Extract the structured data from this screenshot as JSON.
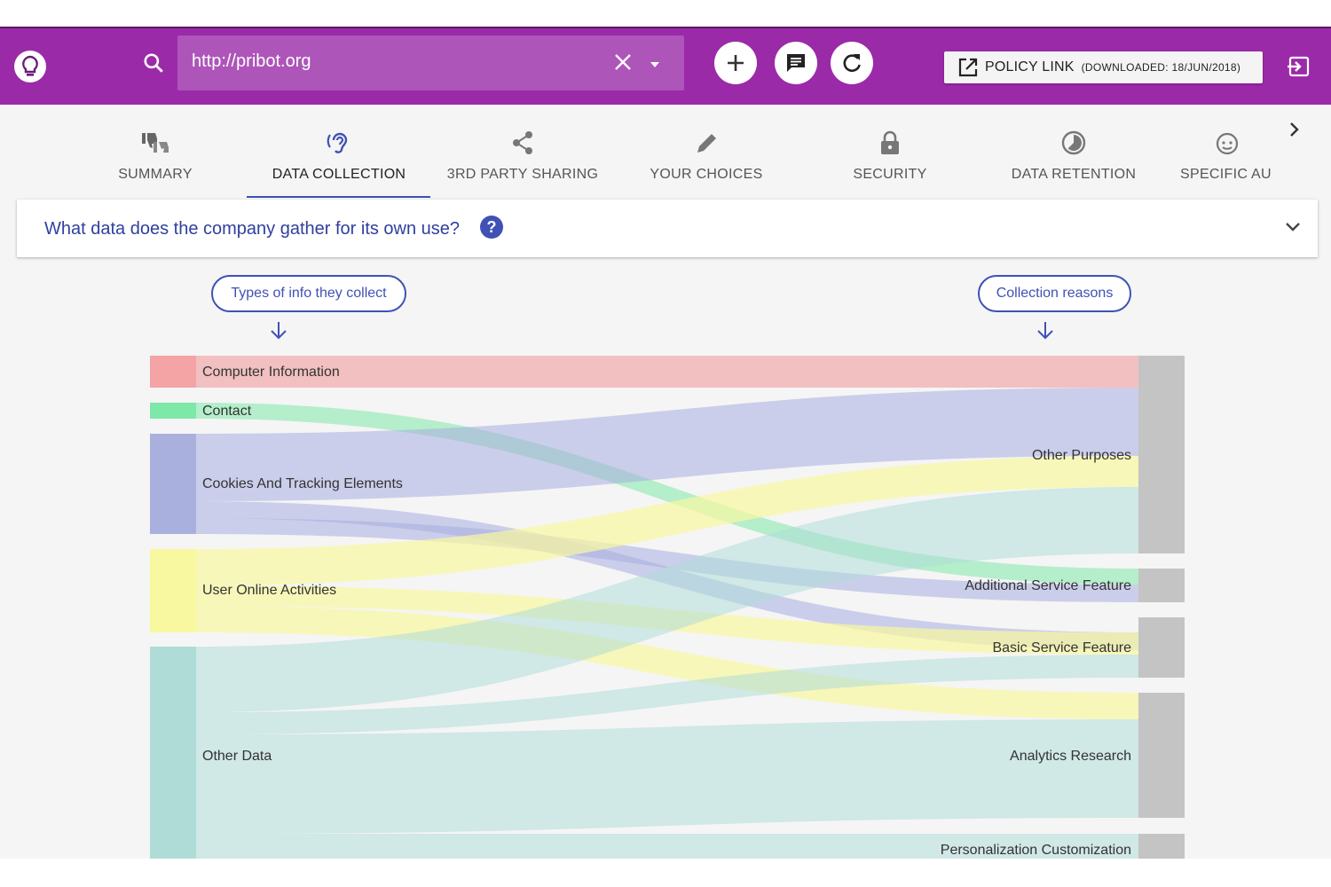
{
  "app": {
    "logo_icon": "lightbulb-icon"
  },
  "search": {
    "value": "http://pribot.org",
    "placeholder": ""
  },
  "toolbar": {
    "add_icon": "plus-icon",
    "chat_icon": "chat-icon",
    "refresh_icon": "refresh-icon",
    "policy_label": "POLICY LINK",
    "policy_downloaded": "(DOWNLOADED: 18/JUN/2018)",
    "exit_icon": "exit-icon"
  },
  "tabs": [
    {
      "label": "SUMMARY",
      "icon": "thumbs-icon",
      "active": false
    },
    {
      "label": "DATA COLLECTION",
      "icon": "ear-icon",
      "active": true
    },
    {
      "label": "3RD PARTY SHARING",
      "icon": "share-icon",
      "active": false
    },
    {
      "label": "YOUR CHOICES",
      "icon": "pencil-icon",
      "active": false
    },
    {
      "label": "SECURITY",
      "icon": "lock-icon",
      "active": false
    },
    {
      "label": "DATA RETENTION",
      "icon": "timer-icon",
      "active": false
    },
    {
      "label": "SPECIFIC AU",
      "icon": "child-face-icon",
      "active": false
    }
  ],
  "question": {
    "text": "What data does the company gather for its own use?",
    "help": "?"
  },
  "pills": {
    "left": "Types of info they collect",
    "right": "Collection reasons"
  },
  "sankey": {
    "sources": [
      {
        "label": "Computer Information",
        "color": "#f08080"
      },
      {
        "label": "Contact",
        "color": "#7de8a8"
      },
      {
        "label": "Cookies And Tracking Elements",
        "color": "#a8ade0"
      },
      {
        "label": "User Online Activities",
        "color": "#f8f8a0"
      },
      {
        "label": "Other Data",
        "color": "#b0dcd8"
      }
    ],
    "targets": [
      {
        "label": "Other Purposes"
      },
      {
        "label": "Additional Service Feature"
      },
      {
        "label": "Basic Service Feature"
      },
      {
        "label": "Analytics Research"
      },
      {
        "label": "Personalization Customization"
      }
    ]
  }
}
